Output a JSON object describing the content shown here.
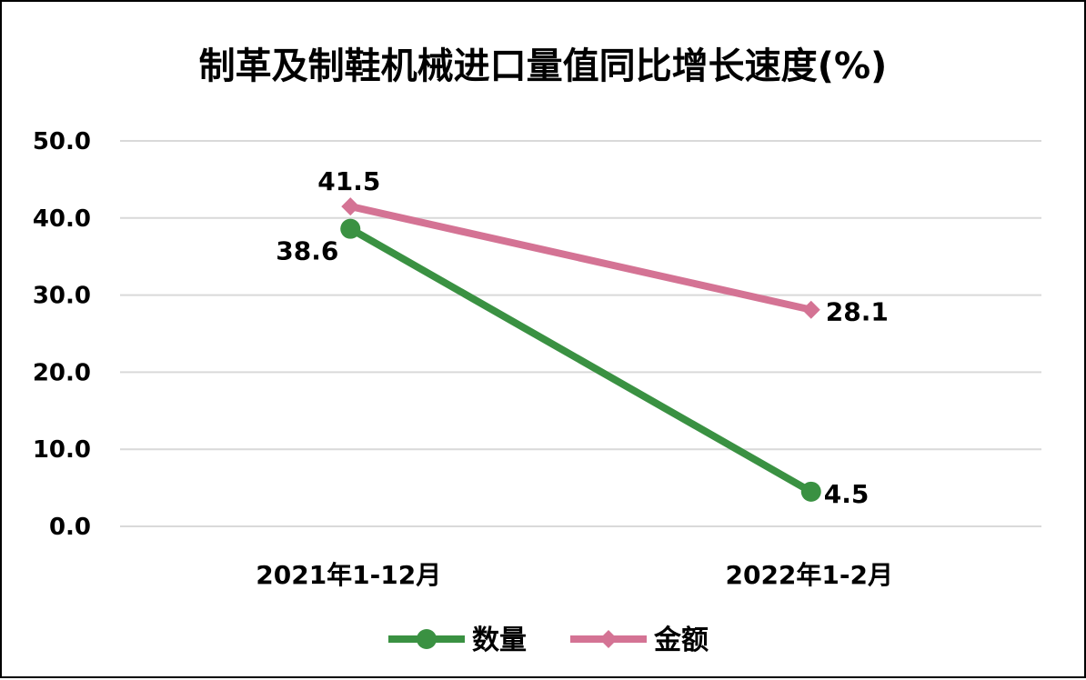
{
  "chart_data": {
    "type": "line",
    "title": "制革及制鞋机械进口量值同比增长速度(%)",
    "xlabel": "",
    "ylabel": "",
    "categories": [
      "2021年1-12月",
      "2022年1-2月"
    ],
    "series": [
      {
        "name": "数量",
        "values": [
          38.6,
          4.5
        ],
        "labels": [
          "38.6",
          "4.5"
        ],
        "color": "#3a9142",
        "marker": "circle"
      },
      {
        "name": "金额",
        "values": [
          41.5,
          28.1
        ],
        "labels": [
          "41.5",
          "28.1"
        ],
        "color": "#d47394",
        "marker": "diamond"
      }
    ],
    "ylim": [
      0,
      50
    ],
    "yticks": [
      "0.0",
      "10.0",
      "20.0",
      "30.0",
      "40.0",
      "50.0"
    ],
    "grid": true,
    "legend_position": "bottom"
  }
}
